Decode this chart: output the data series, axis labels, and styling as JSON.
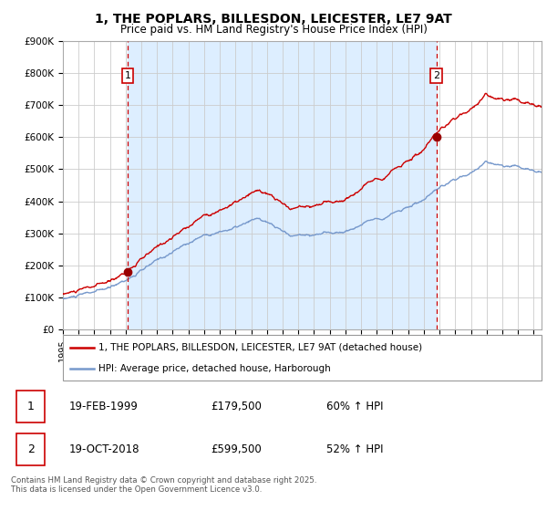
{
  "title_line1": "1, THE POPLARS, BILLESDON, LEICESTER, LE7 9AT",
  "title_line2": "Price paid vs. HM Land Registry's House Price Index (HPI)",
  "background_color": "#ffffff",
  "plot_bg_color": "#ffffff",
  "shaded_bg_color": "#ddeeff",
  "grid_color": "#cccccc",
  "red_line_color": "#cc0000",
  "blue_line_color": "#7799cc",
  "sale1_date_num": 1999.13,
  "sale1_price": 179500,
  "sale1_label": "1",
  "sale2_date_num": 2018.8,
  "sale2_price": 599500,
  "sale2_label": "2",
  "vline_color": "#cc0000",
  "marker_color": "#990000",
  "ylim_max": 900000,
  "ylim_min": 0,
  "xlim_min": 1995.0,
  "xlim_max": 2025.5,
  "legend_label_red": "1, THE POPLARS, BILLESDON, LEICESTER, LE7 9AT (detached house)",
  "legend_label_blue": "HPI: Average price, detached house, Harborough",
  "table_entries": [
    {
      "num": "1",
      "date": "19-FEB-1999",
      "price": "£179,500",
      "hpi": "60% ↑ HPI"
    },
    {
      "num": "2",
      "date": "19-OCT-2018",
      "price": "£599,500",
      "hpi": "52% ↑ HPI"
    }
  ],
  "footer": "Contains HM Land Registry data © Crown copyright and database right 2025.\nThis data is licensed under the Open Government Licence v3.0.",
  "yticks": [
    0,
    100000,
    200000,
    300000,
    400000,
    500000,
    600000,
    700000,
    800000,
    900000
  ],
  "ytick_labels": [
    "£0",
    "£100K",
    "£200K",
    "£300K",
    "£400K",
    "£500K",
    "£600K",
    "£700K",
    "£800K",
    "£900K"
  ]
}
